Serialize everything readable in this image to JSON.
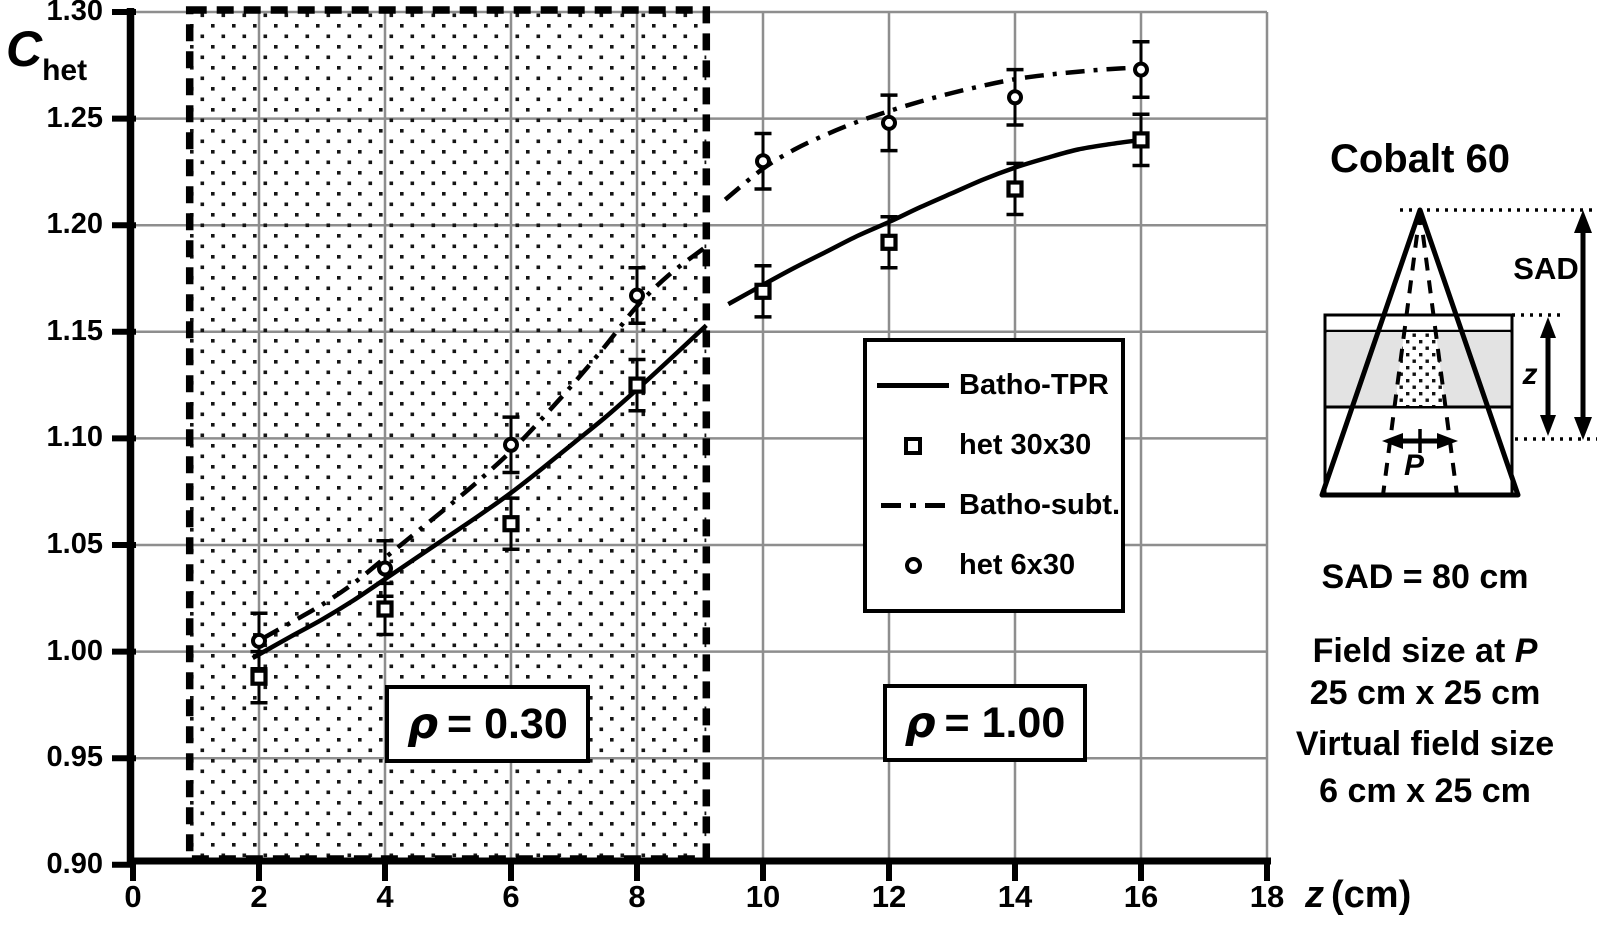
{
  "figure": {
    "bg": "#ffffff",
    "ink": "#000000",
    "grid_color": "#8e8e8e"
  },
  "chart_data": {
    "type": "line",
    "title": "",
    "xlabel_var": "z",
    "xlabel_unit": "(cm)",
    "ylabel_main": "C",
    "ylabel_sub": "het",
    "xlim": [
      0,
      18
    ],
    "ylim": [
      0.9,
      1.3
    ],
    "x_ticks": [
      0,
      2,
      4,
      6,
      8,
      10,
      12,
      14,
      16,
      18
    ],
    "y_ticks": [
      "1.30",
      "1.25",
      "1.20",
      "1.15",
      "1.10",
      "1.05",
      "1.00",
      "0.95",
      "0.90"
    ],
    "grid": true,
    "legend_position": "center-right",
    "regions": [
      {
        "symbol": "ρ",
        "value": "= 0.30",
        "x0": 0.9,
        "x1": 9.1,
        "density": 0.3,
        "stippled": true
      },
      {
        "symbol": "ρ",
        "value": "= 1.00",
        "x0": 9.1,
        "x1": 18,
        "density": 1.0,
        "stippled": false
      }
    ],
    "series": [
      {
        "name": "Batho-TPR",
        "kind": "curve",
        "style": "solid",
        "segments": [
          {
            "x": [
              1.9,
              2.5,
              3,
              3.5,
              4,
              4.5,
              5,
              5.5,
              6,
              6.5,
              7,
              7.5,
              8,
              8.5,
              9.1
            ],
            "y": [
              0.997,
              1.007,
              1.015,
              1.024,
              1.034,
              1.044,
              1.054,
              1.064,
              1.0745,
              1.086,
              1.098,
              1.11,
              1.123,
              1.1365,
              1.153
            ]
          },
          {
            "x": [
              9.45,
              10,
              10.5,
              11,
              11.5,
              12,
              12.5,
              13,
              13.5,
              14,
              14.5,
              15,
              15.5,
              16
            ],
            "y": [
              1.163,
              1.172,
              1.18,
              1.1875,
              1.195,
              1.2015,
              1.2085,
              1.215,
              1.2215,
              1.227,
              1.2315,
              1.2355,
              1.238,
              1.24
            ]
          }
        ]
      },
      {
        "name": "het 30x30",
        "kind": "scatter",
        "marker": "square",
        "x": [
          2,
          4,
          6,
          8,
          10,
          12,
          14,
          16
        ],
        "y": [
          0.988,
          1.02,
          1.06,
          1.125,
          1.169,
          1.192,
          1.217,
          1.24
        ],
        "yerr": 0.012
      },
      {
        "name": "Batho-subt.",
        "kind": "curve",
        "style": "dashdot",
        "segments": [
          {
            "x": [
              2.05,
              2.5,
              3,
              3.5,
              4,
              4.5,
              5,
              5.5,
              6,
              6.5,
              7,
              7.5,
              8,
              8.5,
              9.1
            ],
            "y": [
              1.006,
              1.0135,
              1.022,
              1.032,
              1.044,
              1.056,
              1.068,
              1.0805,
              1.094,
              1.1095,
              1.126,
              1.1435,
              1.162,
              1.1765,
              1.19
            ]
          },
          {
            "x": [
              9.4,
              10,
              10.5,
              11,
              11.5,
              12,
              12.5,
              13,
              13.5,
              14,
              14.5,
              15,
              15.5,
              16
            ],
            "y": [
              1.212,
              1.2265,
              1.2355,
              1.2425,
              1.2485,
              1.2535,
              1.258,
              1.262,
              1.2655,
              1.2685,
              1.2705,
              1.272,
              1.2732,
              1.274
            ]
          }
        ]
      },
      {
        "name": "het 6x30",
        "kind": "scatter",
        "marker": "circle",
        "x": [
          2,
          4,
          6,
          8,
          10,
          12,
          14,
          16
        ],
        "y": [
          1.005,
          1.039,
          1.097,
          1.167,
          1.23,
          1.248,
          1.26,
          1.273
        ],
        "yerr": 0.013
      }
    ],
    "legend": {
      "items": [
        {
          "label": "Batho-TPR",
          "symbol": "solid-line"
        },
        {
          "label": "het 30x30",
          "symbol": "open-square"
        },
        {
          "label": "Batho-subt.",
          "symbol": "dashdot-line"
        },
        {
          "label": "het 6x30",
          "symbol": "open-circle"
        }
      ]
    }
  },
  "diagram": {
    "title": "Cobalt 60",
    "sad_label": "SAD",
    "z_label": "z",
    "p_label": "P",
    "sad_text": "SAD = 80 cm",
    "field_size_prefix": "Field size at ",
    "field_size_var": "P",
    "field_size_value": "25 cm x 25 cm",
    "virtual_field_label": "Virtual field size",
    "virtual_field_value": "6 cm x 25 cm"
  }
}
